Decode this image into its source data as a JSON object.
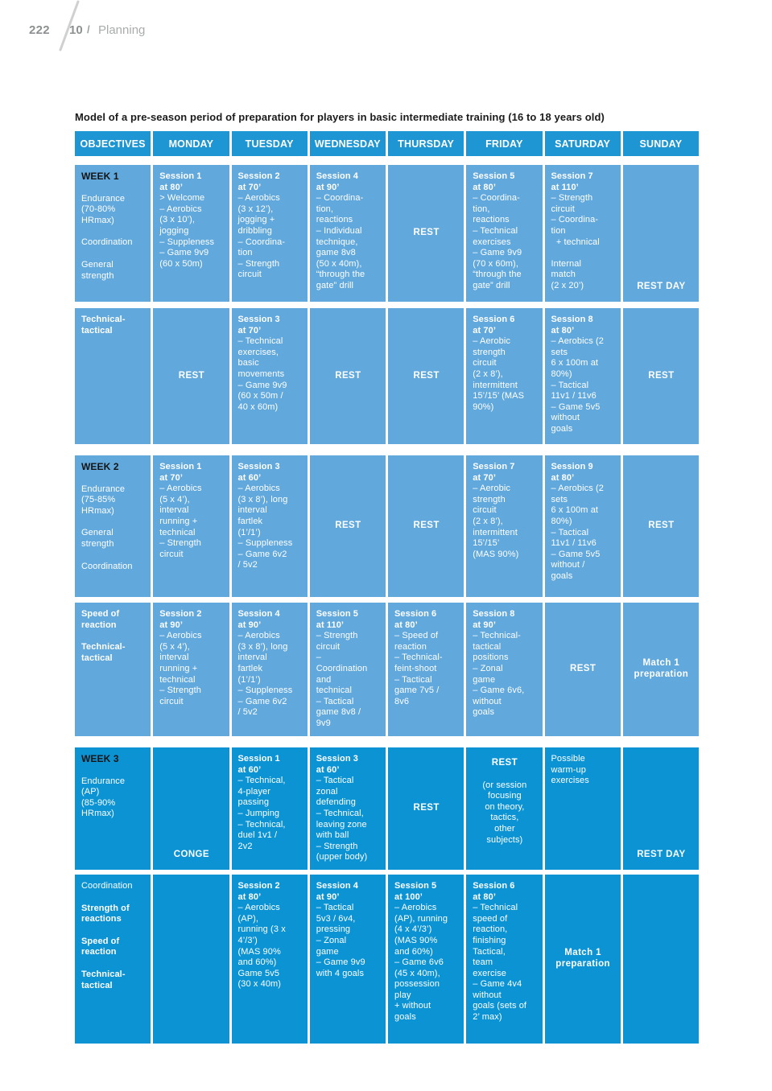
{
  "page": {
    "number": "222",
    "chapter": "10",
    "separator": "/",
    "section": "Planning"
  },
  "colors": {
    "header_blue": "#1E96D3",
    "week_light_blue": "#61A8DC",
    "week_dark_blue": "#0B93D4",
    "week_label_black": "#141414",
    "cell_text_white": "#FFFFFF",
    "page_header_gray": "#8d9091"
  },
  "table": {
    "title": "Model of a pre-season period of preparation for players in basic intermediate training (16 to 18 years old)",
    "columns": [
      "OBJECTIVES",
      "MONDAY",
      "TUESDAY",
      "WEDNESDAY",
      "THURSDAY",
      "FRIDAY",
      "SATURDAY",
      "SUNDAY"
    ],
    "weeks": [
      {
        "theme": "light",
        "rows": [
          [
            {
              "t": "obj",
              "week": "WEEK 1",
              "groups": [
                {
                  "text": "Endurance\n(70-80%\nHRmax)",
                  "bold": false
                },
                {
                  "text": "Coordination",
                  "bold": false
                },
                {
                  "text": "General\nstrength",
                  "bold": false
                }
              ]
            },
            {
              "t": "sess",
              "title": "Session 1\nat 80’",
              "body": "> Welcome\n– Aerobics\n(3 x 10’),\njogging\n– Suppleness\n– Game 9v9\n(60 x 50m)"
            },
            {
              "t": "sess",
              "title": "Session 2\nat 70’",
              "body": "– Aerobics\n(3 x 12’),\njogging +\ndribbling\n– Coordina-\ntion\n– Strength\ncircuit"
            },
            {
              "t": "sess",
              "title": "Session 4\nat 90’",
              "body": "– Coordina-\ntion,\nreactions\n– Individual\ntechnique,\ngame 8v8\n(50 x 40m),\n“through the\ngate” drill"
            },
            {
              "t": "rest",
              "label": "REST"
            },
            {
              "t": "sess",
              "title": "Session 5\nat 80’",
              "body": "– Coordina-\ntion,\nreactions\n– Technical\nexercises\n– Game 9v9\n(70 x 60m),\n“through the\ngate” drill"
            },
            {
              "t": "sess",
              "title": "Session 7\nat 110’",
              "body": "– Strength\ncircuit\n– Coordina-\ntion\n  + technical\n\nInternal\nmatch\n(2 x 20’)"
            },
            {
              "t": "bottom",
              "label": "REST DAY"
            }
          ],
          [
            {
              "t": "obj",
              "week": null,
              "groups": [
                {
                  "text": "Technical-\ntactical",
                  "bold": true
                }
              ]
            },
            {
              "t": "rest",
              "label": "REST"
            },
            {
              "t": "sess",
              "title": "Session 3\nat 70’",
              "body": "– Technical\nexercises,\nbasic\nmovements\n– Game 9v9\n(60 x 50m /\n40 x 60m)"
            },
            {
              "t": "rest",
              "label": "REST"
            },
            {
              "t": "rest",
              "label": "REST"
            },
            {
              "t": "sess",
              "title": "Session 6\nat 70’",
              "body": "– Aerobic\nstrength\ncircuit\n(2 x 8’),\nintermittent\n15’/15’ (MAS\n90%)"
            },
            {
              "t": "sess",
              "title": "Session 8\nat 80’",
              "body": "– Aerobics (2\nsets\n6 x 100m at\n80%)\n– Tactical\n11v1 / 11v6\n– Game 5v5\nwithout\ngoals"
            },
            {
              "t": "rest",
              "label": "REST"
            }
          ]
        ]
      },
      {
        "theme": "light",
        "rows": [
          [
            {
              "t": "obj",
              "week": "WEEK 2",
              "groups": [
                {
                  "text": "Endurance\n(75-85%\nHRmax)",
                  "bold": false
                },
                {
                  "text": "General\nstrength",
                  "bold": false
                },
                {
                  "text": "Coordination",
                  "bold": false
                }
              ]
            },
            {
              "t": "sess",
              "title": "Session 1\nat 70’",
              "body": "– Aerobics\n(5 x 4’),\ninterval\nrunning +\ntechnical\n– Strength\ncircuit"
            },
            {
              "t": "sess",
              "title": "Session 3\nat 60’",
              "body": "– Aerobics\n(3 x 8’), long\ninterval\nfartlek\n(1’/1’)\n– Suppleness\n– Game 6v2\n/ 5v2"
            },
            {
              "t": "rest",
              "label": "REST"
            },
            {
              "t": "rest",
              "label": "REST"
            },
            {
              "t": "sess",
              "title": "Session 7\nat 70’",
              "body": "– Aerobic\nstrength\ncircuit\n(2 x 8’),\nintermittent\n15’/15’\n(MAS 90%)"
            },
            {
              "t": "sess",
              "title": "Session 9\nat 80’",
              "body": "– Aerobics (2\nsets\n6 x 100m at\n80%)\n– Tactical\n11v1 / 11v6\n– Game 5v5\nwithout /\ngoals"
            },
            {
              "t": "rest",
              "label": "REST"
            }
          ],
          [
            {
              "t": "obj",
              "week": null,
              "groups": [
                {
                  "text": "Speed of\nreaction",
                  "bold": true
                },
                {
                  "text": "Technical-\ntactical",
                  "bold": true
                }
              ]
            },
            {
              "t": "sess",
              "title": "Session 2\nat 90’",
              "body": "– Aerobics\n(5 x 4’),\ninterval\nrunning +\ntechnical\n– Strength\ncircuit"
            },
            {
              "t": "sess",
              "title": "Session 4\nat 90’",
              "body": "– Aerobics\n(3 x 8’), long\ninterval\nfartlek\n(1’/1’)\n– Suppleness\n– Game 6v2\n/ 5v2"
            },
            {
              "t": "sess",
              "title": "Session 5\nat 110’",
              "body": "– Strength\ncircuit\n–\nCoordination\nand\ntechnical\n– Tactical\ngame 8v8 /\n9v9"
            },
            {
              "t": "sess",
              "title": "Session 6\nat 80’",
              "body": "– Speed of\nreaction\n– Technical-\nfeint-shoot\n– Tactical\ngame 7v5 /\n8v6"
            },
            {
              "t": "sess",
              "title": "Session 8\nat 90’",
              "body": "– Technical-\ntactical\npositions\n– Zonal\ngame\n– Game 6v6,\nwithout\ngoals"
            },
            {
              "t": "rest",
              "label": "REST"
            },
            {
              "t": "center",
              "label": "Match 1\npreparation"
            }
          ]
        ]
      },
      {
        "theme": "dark",
        "rows": [
          [
            {
              "t": "obj",
              "week": "WEEK 3",
              "groups": [
                {
                  "text": "Endurance\n(AP)\n(85-90%\nHRmax)",
                  "bold": false
                }
              ]
            },
            {
              "t": "bottom",
              "label": "CONGE"
            },
            {
              "t": "sess",
              "title": "Session 1\nat 60’",
              "body": "– Technical,\n4-player\npassing\n– Jumping\n– Technical,\nduel 1v1 /\n2v2"
            },
            {
              "t": "sess",
              "title": "Session 3\nat 60’",
              "body": "– Tactical\nzonal\ndefending\n– Technical,\nleaving zone\nwith ball\n– Strength\n(upper body)"
            },
            {
              "t": "rest",
              "label": "REST"
            },
            {
              "t": "restnote",
              "label": "REST",
              "note": "(or session\nfocusing\non theory,\ntactics,\nother\nsubjects)"
            },
            {
              "t": "plain",
              "text": "Possible\nwarm-up\nexercises"
            },
            {
              "t": "bottom",
              "label": "REST DAY"
            }
          ],
          [
            {
              "t": "obj",
              "week": null,
              "groups": [
                {
                  "text": "Coordination",
                  "bold": false
                },
                {
                  "text": "Strength of\nreactions",
                  "bold": true
                },
                {
                  "text": "Speed of\nreaction",
                  "bold": true
                },
                {
                  "text": "Technical-\ntactical",
                  "bold": true
                }
              ]
            },
            {
              "t": "empty"
            },
            {
              "t": "sess",
              "title": "Session 2\nat 80’",
              "body": "– Aerobics\n(AP),\nrunning (3 x\n4’/3’)\n(MAS 90%\nand 60%)\nGame 5v5\n(30 x 40m)"
            },
            {
              "t": "sess",
              "title": "Session 4\nat 90’",
              "body": "– Tactical\n5v3 / 6v4,\npressing\n– Zonal\ngame\n– Game 9v9\nwith 4 goals"
            },
            {
              "t": "sess",
              "title": "Session 5\nat 100’",
              "body": "– Aerobics\n(AP), running\n(4 x 4’/3’)\n(MAS 90%\nand 60%)\n– Game 6v6\n(45 x 40m),\npossession\nplay\n+ without\ngoals"
            },
            {
              "t": "sess",
              "title": "Session 6\nat 80’",
              "body": "– Technical\nspeed of\nreaction,\nfinishing\nTactical,\nteam\nexercise\n– Game 4v4\nwithout\ngoals (sets of\n2’ max)"
            },
            {
              "t": "center",
              "label": "Match 1\npreparation"
            },
            {
              "t": "empty"
            }
          ]
        ]
      }
    ]
  }
}
